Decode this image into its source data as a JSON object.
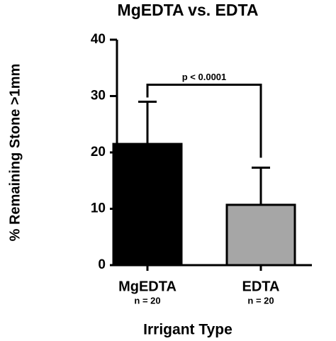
{
  "chart_data": {
    "type": "bar",
    "title": "MgEDTA vs. EDTA",
    "x_label": "Irrigant Type",
    "y_label": "% Remaining  Stone >1mm",
    "categories": [
      "MgEDTA",
      "EDTA"
    ],
    "category_sublabels": [
      "n = 20",
      "n = 20"
    ],
    "values": [
      21.5,
      10.7
    ],
    "errors": [
      7.5,
      6.6
    ],
    "colors": [
      "#000000",
      "#a6a6a6"
    ],
    "ylim": [
      0,
      40
    ],
    "yticks": [
      0,
      10,
      20,
      30,
      40
    ],
    "annotation": "p < 0.0001"
  }
}
